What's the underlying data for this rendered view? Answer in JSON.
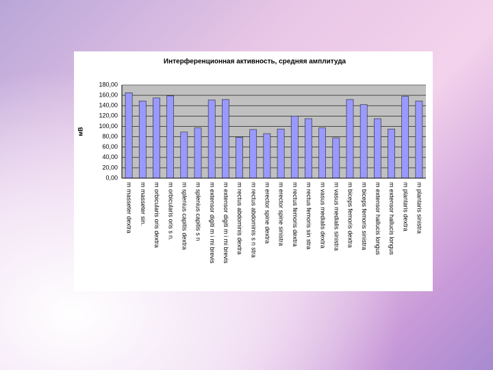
{
  "chart_data": {
    "type": "bar",
    "title": "Интерференционная активность, средняя амплитуда",
    "y_label": "мВ",
    "categories": [
      "m masseter dextra",
      "m masseter sin.",
      "m orbicularis oris dextra",
      "m orbicularis oris s n.",
      "m splenius capitis dextra",
      "m splenius capitis s n",
      "m extensor digiti m i mi brevis",
      "m extensor digiti m i mi brevis",
      "m rectus abdominis dextra",
      "m rectus abdominis s n stra",
      "m erector spine dextra",
      "m erector spine sinistra",
      "m rectus femoris dextra",
      "m rectus femoris sin stra",
      "m vasus medialis dextra",
      "m vasus medialis sinistra",
      "m biceps femoris dextra",
      "m biceps femoris sinistra",
      "m extensor hallucis longus",
      "m extensor hallucis longus",
      "m plantaris dextra",
      "m plantaris sinistra"
    ],
    "values": [
      165,
      149,
      155,
      159,
      89,
      97,
      151,
      152,
      79,
      94,
      86,
      95,
      120,
      115,
      97,
      78,
      152,
      142,
      115,
      95,
      158,
      149
    ],
    "color": "#9999ff",
    "ylim": [
      0,
      180
    ],
    "yticks": [
      {
        "value": 0,
        "label": "0,00"
      },
      {
        "value": 20,
        "label": "20,00"
      },
      {
        "value": 40,
        "label": "40,00"
      },
      {
        "value": 60,
        "label": "60,00"
      },
      {
        "value": 80,
        "label": "80,00"
      },
      {
        "value": 100,
        "label": "100,00"
      },
      {
        "value": 120,
        "label": "120,00"
      },
      {
        "value": 140,
        "label": "140,00"
      },
      {
        "value": 160,
        "label": "160,00"
      },
      {
        "value": 180,
        "label": "180,00"
      }
    ],
    "grid": true
  }
}
